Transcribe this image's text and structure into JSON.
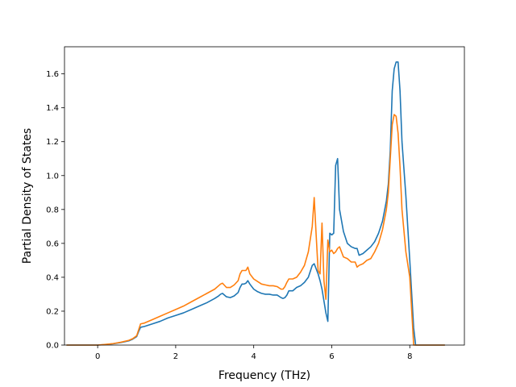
{
  "chart_data": {
    "type": "line",
    "title": "",
    "xlabel": "Frequency (THz)",
    "ylabel": "Partial Density of States",
    "xlim": [
      -0.85,
      9.4
    ],
    "ylim": [
      0,
      1.76
    ],
    "xticks": [
      0,
      2,
      4,
      6,
      8
    ],
    "xtick_labels": [
      "0",
      "2",
      "4",
      "6",
      "8"
    ],
    "yticks": [
      0,
      0.2,
      0.4,
      0.6,
      0.8,
      1.0,
      1.2,
      1.4,
      1.6
    ],
    "ytick_labels": [
      "0.0",
      "0.2",
      "0.4",
      "0.6",
      "0.8",
      "1.0",
      "1.2",
      "1.4",
      "1.6"
    ],
    "grid": false,
    "legend": "none",
    "series": [
      {
        "color": "#1f77b4",
        "x": [
          -0.8,
          0.0,
          0.2,
          0.4,
          0.6,
          0.8,
          0.9,
          1.0,
          1.05,
          1.1,
          1.2,
          1.4,
          1.6,
          1.8,
          2.0,
          2.2,
          2.4,
          2.6,
          2.8,
          3.0,
          3.1,
          3.15,
          3.2,
          3.3,
          3.4,
          3.5,
          3.6,
          3.65,
          3.7,
          3.75,
          3.8,
          3.85,
          3.9,
          4.0,
          4.1,
          4.2,
          4.3,
          4.4,
          4.5,
          4.6,
          4.7,
          4.75,
          4.8,
          4.85,
          4.9,
          5.0,
          5.1,
          5.2,
          5.3,
          5.4,
          5.5,
          5.55,
          5.6,
          5.65,
          5.7,
          5.75,
          5.8,
          5.85,
          5.9,
          5.95,
          6.0,
          6.05,
          6.1,
          6.15,
          6.2,
          6.3,
          6.4,
          6.5,
          6.6,
          6.65,
          6.7,
          6.8,
          6.9,
          7.0,
          7.1,
          7.2,
          7.3,
          7.4,
          7.45,
          7.5,
          7.55,
          7.6,
          7.65,
          7.7,
          7.75,
          7.8,
          7.9,
          8.0,
          8.05,
          8.1,
          8.15,
          8.2,
          8.5,
          8.9
        ],
        "y": [
          0.0,
          0.0,
          0.003,
          0.008,
          0.015,
          0.025,
          0.035,
          0.05,
          0.08,
          0.105,
          0.11,
          0.125,
          0.14,
          0.16,
          0.175,
          0.19,
          0.21,
          0.23,
          0.25,
          0.275,
          0.29,
          0.3,
          0.305,
          0.285,
          0.28,
          0.29,
          0.31,
          0.34,
          0.36,
          0.36,
          0.365,
          0.38,
          0.36,
          0.33,
          0.315,
          0.305,
          0.3,
          0.3,
          0.295,
          0.295,
          0.28,
          0.275,
          0.28,
          0.295,
          0.32,
          0.32,
          0.34,
          0.35,
          0.37,
          0.4,
          0.47,
          0.48,
          0.45,
          0.42,
          0.38,
          0.33,
          0.26,
          0.19,
          0.14,
          0.66,
          0.65,
          0.66,
          1.06,
          1.1,
          0.8,
          0.67,
          0.6,
          0.58,
          0.57,
          0.57,
          0.53,
          0.54,
          0.56,
          0.58,
          0.61,
          0.66,
          0.73,
          0.85,
          0.95,
          1.15,
          1.5,
          1.63,
          1.67,
          1.67,
          1.5,
          1.2,
          0.88,
          0.5,
          0.3,
          0.1,
          0.0,
          0.0,
          0.0,
          0.0
        ]
      },
      {
        "color": "#ff7f0e",
        "x": [
          -0.8,
          0.0,
          0.2,
          0.4,
          0.6,
          0.8,
          0.9,
          1.0,
          1.05,
          1.1,
          1.2,
          1.4,
          1.6,
          1.8,
          2.0,
          2.2,
          2.4,
          2.6,
          2.8,
          3.0,
          3.1,
          3.15,
          3.2,
          3.3,
          3.4,
          3.5,
          3.6,
          3.65,
          3.7,
          3.75,
          3.8,
          3.85,
          3.9,
          4.0,
          4.1,
          4.2,
          4.3,
          4.4,
          4.5,
          4.6,
          4.7,
          4.75,
          4.8,
          4.85,
          4.9,
          5.0,
          5.1,
          5.2,
          5.3,
          5.4,
          5.5,
          5.55,
          5.6,
          5.65,
          5.7,
          5.75,
          5.8,
          5.85,
          5.9,
          5.95,
          6.0,
          6.05,
          6.1,
          6.15,
          6.2,
          6.25,
          6.3,
          6.4,
          6.5,
          6.6,
          6.65,
          6.7,
          6.8,
          6.9,
          7.0,
          7.1,
          7.2,
          7.3,
          7.4,
          7.45,
          7.5,
          7.55,
          7.6,
          7.65,
          7.7,
          7.75,
          7.8,
          7.9,
          8.0,
          8.05,
          8.1,
          8.15,
          8.2,
          8.5,
          8.9
        ],
        "y": [
          0.0,
          0.0,
          0.004,
          0.009,
          0.017,
          0.028,
          0.038,
          0.055,
          0.09,
          0.125,
          0.13,
          0.15,
          0.17,
          0.19,
          0.21,
          0.23,
          0.255,
          0.28,
          0.305,
          0.33,
          0.35,
          0.36,
          0.365,
          0.34,
          0.34,
          0.355,
          0.38,
          0.42,
          0.44,
          0.44,
          0.44,
          0.46,
          0.42,
          0.39,
          0.375,
          0.36,
          0.355,
          0.35,
          0.35,
          0.345,
          0.33,
          0.33,
          0.345,
          0.37,
          0.39,
          0.39,
          0.4,
          0.43,
          0.47,
          0.55,
          0.7,
          0.87,
          0.65,
          0.44,
          0.42,
          0.72,
          0.38,
          0.27,
          0.62,
          0.55,
          0.56,
          0.54,
          0.55,
          0.57,
          0.58,
          0.55,
          0.52,
          0.51,
          0.49,
          0.49,
          0.46,
          0.47,
          0.48,
          0.5,
          0.51,
          0.55,
          0.6,
          0.68,
          0.8,
          0.9,
          1.1,
          1.3,
          1.36,
          1.35,
          1.25,
          1.05,
          0.8,
          0.55,
          0.4,
          0.2,
          0.0,
          0.0,
          0.0,
          0.0,
          0.0
        ]
      }
    ]
  }
}
